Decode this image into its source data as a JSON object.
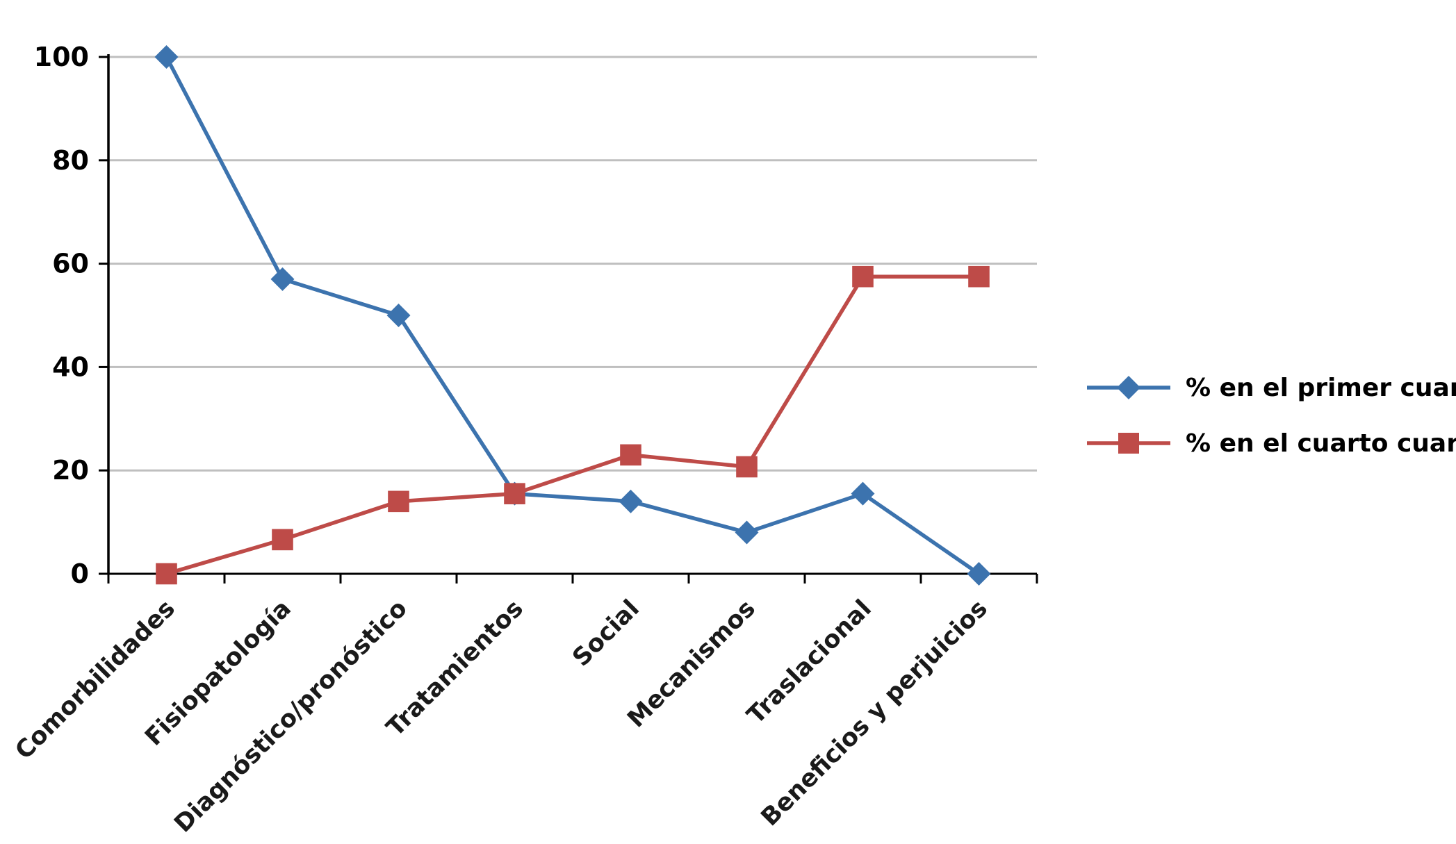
{
  "chart_data": {
    "type": "line",
    "categories": [
      "Comorbilidades",
      "Fisiopatología",
      "Diagnóstico/pronóstico",
      "Tratamientos",
      "Social",
      "Mecanismos",
      "Traslacional",
      "Beneficios y perjuicios"
    ],
    "series": [
      {
        "name": "% en el primer cuartil",
        "marker": "diamond",
        "color": "#3C73AE",
        "values": [
          100,
          57,
          50,
          15.5,
          14,
          8,
          15.5,
          0
        ]
      },
      {
        "name": "% en el cuarto cuartil",
        "marker": "square",
        "color": "#BE4B48",
        "values": [
          0,
          6.6,
          14,
          15.5,
          23,
          20.7,
          57.5,
          57.5
        ]
      }
    ],
    "title": "",
    "xlabel": "",
    "ylabel": "",
    "ylim": [
      0,
      100
    ],
    "yticks": [
      0,
      20,
      40,
      60,
      80,
      100
    ],
    "grid": "horizontal",
    "legend_position": "right"
  },
  "styles": {
    "grid_color": "#BFBFBF",
    "axis_color": "#000000",
    "tick_label_color": "#000000",
    "category_label_color": "#1a1a1a"
  }
}
